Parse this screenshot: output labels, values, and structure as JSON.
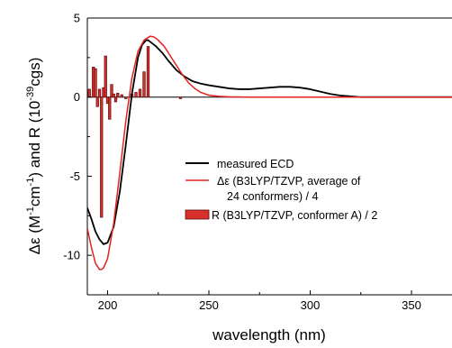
{
  "chart_data": {
    "type": "line",
    "xlabel": "wavelength (nm)",
    "ylabel": "Δε (M⁻¹cm⁻¹) and R (10⁻³⁹cgs)",
    "ylabel_parts": {
      "a": "Δε (M",
      "a_sup": "-1",
      "b": "cm",
      "b_sup": "-1",
      "c": ") and R (10",
      "c_sup": "-39",
      "d": "cgs)"
    },
    "xlim": [
      190,
      370
    ],
    "ylim": [
      -12.5,
      5
    ],
    "xticks": [
      200,
      250,
      300,
      350
    ],
    "xtick_labels": [
      "200",
      "250",
      "300",
      "350"
    ],
    "yticks": [
      5,
      0,
      -5,
      -10
    ],
    "ytick_labels": [
      "5",
      "0",
      "-5",
      "-10"
    ],
    "legend_position": "center-right",
    "colors": {
      "measured": "#000000",
      "calc": "#e52222",
      "bar_fill": "#d8312c",
      "bar_edge": "#5a1010"
    },
    "series": [
      {
        "name": "measured ECD",
        "style": "line",
        "x": [
          190,
          192,
          194,
          196,
          198,
          200,
          203,
          206,
          209,
          212,
          215,
          217,
          219,
          220,
          222,
          224,
          227,
          230,
          234,
          238,
          242,
          246,
          250,
          255,
          260,
          265,
          270,
          275,
          280,
          285,
          290,
          295,
          300,
          305,
          310,
          315,
          320,
          325,
          330,
          340,
          350,
          360,
          370
        ],
        "y": [
          -7.0,
          -7.7,
          -8.5,
          -9.0,
          -9.3,
          -9.2,
          -8.2,
          -6.0,
          -3.0,
          0.2,
          2.5,
          3.3,
          3.6,
          3.6,
          3.4,
          3.2,
          2.8,
          2.3,
          1.7,
          1.3,
          1.0,
          0.85,
          0.75,
          0.65,
          0.55,
          0.5,
          0.5,
          0.55,
          0.6,
          0.65,
          0.65,
          0.6,
          0.5,
          0.35,
          0.2,
          0.1,
          0.05,
          0.0,
          0.0,
          0.0,
          0.0,
          0.0,
          0.0
        ]
      },
      {
        "name": "Δε (B3LYP/TZVP, average of 24 conformers) / 4",
        "style": "line",
        "x": [
          190,
          192,
          194,
          196,
          197,
          198,
          200,
          203,
          206,
          209,
          212,
          215,
          218,
          221,
          223,
          225,
          228,
          231,
          234,
          237,
          240,
          243,
          246,
          250,
          255,
          260,
          270,
          280,
          290,
          300,
          310,
          320,
          330,
          340,
          350,
          360,
          370
        ],
        "y": [
          -8.3,
          -9.5,
          -10.5,
          -10.9,
          -10.9,
          -10.8,
          -10.2,
          -8.0,
          -4.8,
          -1.5,
          1.2,
          2.9,
          3.6,
          3.85,
          3.8,
          3.6,
          3.2,
          2.6,
          2.0,
          1.4,
          0.9,
          0.55,
          0.3,
          0.12,
          0.05,
          0.02,
          0.0,
          0.0,
          0.0,
          0.0,
          0.0,
          0.0,
          0.0,
          0.0,
          0.0,
          0.0,
          0.0
        ]
      },
      {
        "name": "R (B3LYP/TZVP, conformer A) / 2",
        "style": "bar",
        "x": [
          191,
          193,
          194,
          195,
          196,
          197,
          198,
          199,
          200,
          201,
          202,
          203,
          204,
          205,
          207,
          209,
          212,
          214,
          216,
          218,
          220,
          236
        ],
        "y": [
          0.5,
          1.9,
          1.8,
          -0.6,
          0.5,
          -7.6,
          0.6,
          2.6,
          -0.4,
          -1.4,
          0.8,
          0.2,
          -0.3,
          0.25,
          0.15,
          -0.1,
          0.2,
          0.3,
          0.5,
          1.6,
          3.2,
          -0.1
        ]
      }
    ],
    "legend": {
      "items": [
        {
          "label": "measured ECD",
          "symbol": "line",
          "color": "#000000"
        },
        {
          "label_lines": [
            "Δε (B3LYP/TZVP, average of",
            "24 conformers) / 4"
          ],
          "symbol": "line",
          "color": "#e52222"
        },
        {
          "label": "R (B3LYP/TZVP, conformer A) / 2",
          "symbol": "box",
          "color": "#d8312c"
        }
      ]
    }
  }
}
